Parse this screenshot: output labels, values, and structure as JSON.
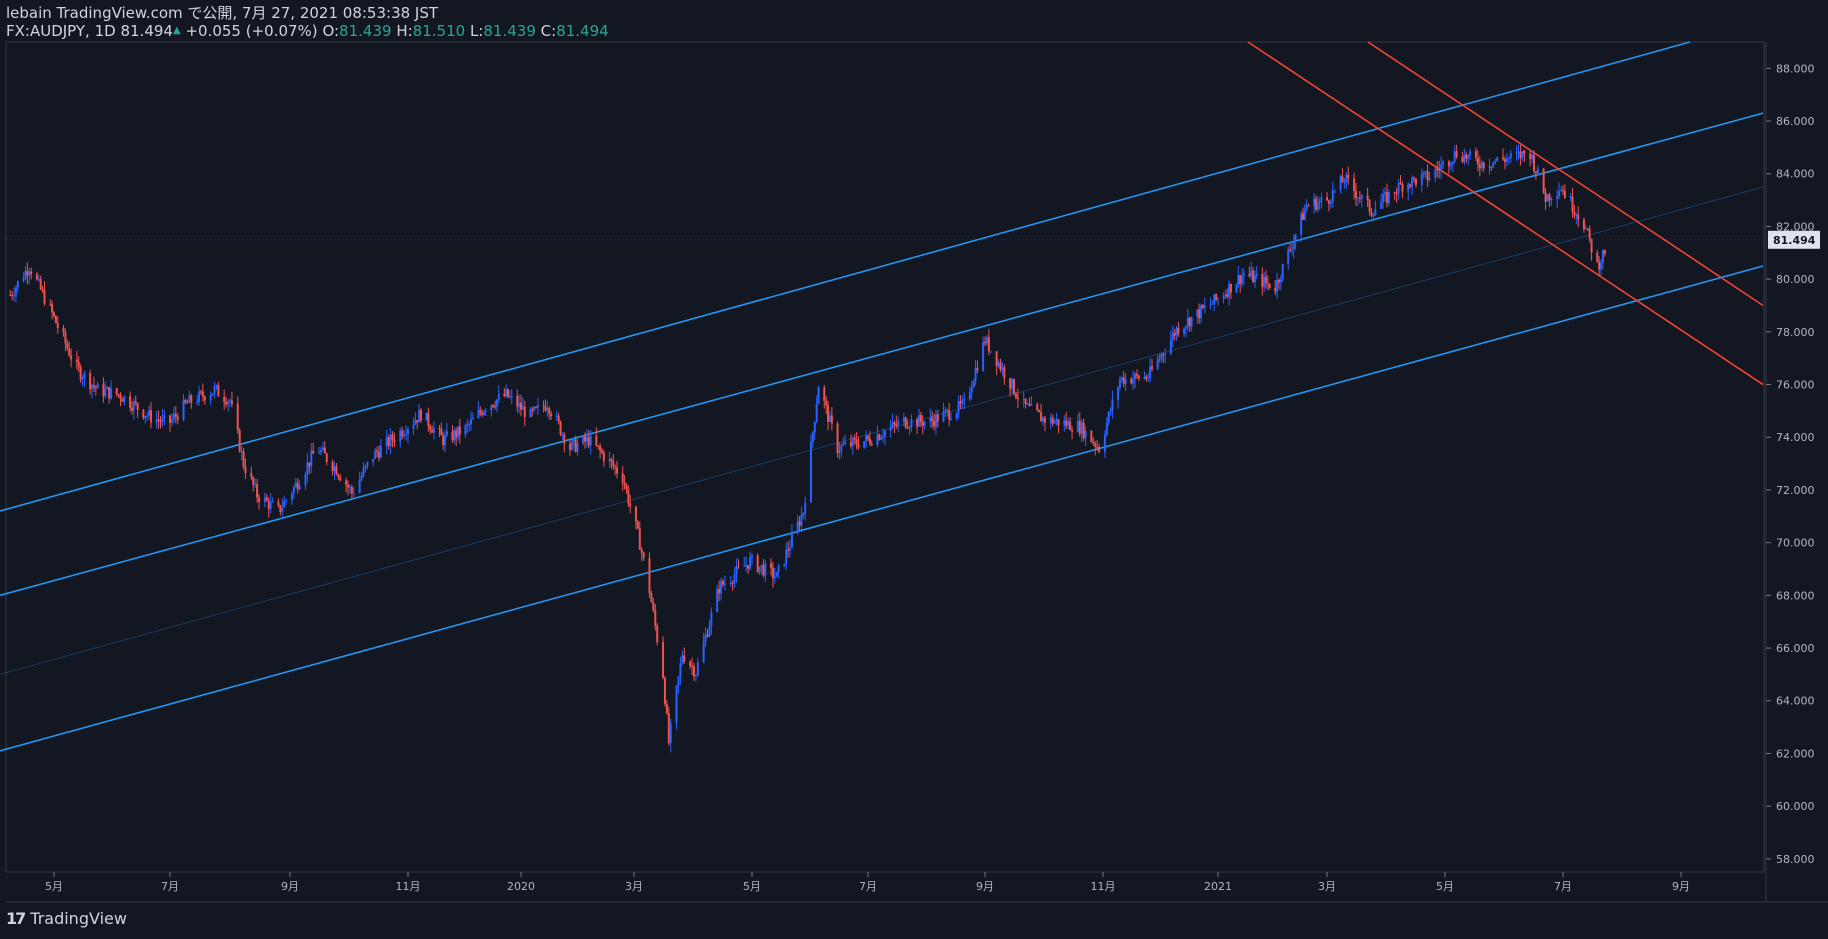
{
  "header": {
    "published_line": "lebain TradingView.com で公開, 7月 27, 2021 08:53:38 JST",
    "symbol": "FX:AUDJPY, 1D",
    "last": "81.494",
    "change": "+0.055 (+0.07%)",
    "o_label": "O:",
    "o": "81.439",
    "h_label": "H:",
    "h": "81.510",
    "l_label": "L:",
    "l": "81.439",
    "c_label": "C:",
    "c": "81.494"
  },
  "footer": {
    "brand": "TradingView"
  },
  "colors": {
    "background": "#131722",
    "up": "#2962ff",
    "down": "#ef5350",
    "channel_blue": "#2196f3",
    "channel_red": "#f44336",
    "grid": "#1e222d",
    "axis_text": "#b2b5be"
  },
  "chart_data": {
    "type": "candlestick",
    "symbol": "FX:AUDJPY",
    "interval": "1D",
    "last_price": 81.494,
    "last_price_label": "81.494",
    "x_ticks": [
      "5月",
      "7月",
      "9月",
      "11月",
      "2020",
      "3月",
      "5月",
      "7月",
      "9月",
      "11月",
      "2021",
      "3月",
      "5月",
      "7月",
      "9月"
    ],
    "x_tick_dates": [
      "2019-05-01",
      "2019-07-01",
      "2019-09-01",
      "2019-11-01",
      "2020-01-01",
      "2020-03-01",
      "2020-05-01",
      "2020-07-01",
      "2020-09-01",
      "2020-11-01",
      "2021-01-01",
      "2021-03-01",
      "2021-05-01",
      "2021-07-01",
      "2021-09-01"
    ],
    "y_ticks": [
      "88.000",
      "86.000",
      "84.000",
      "82.000",
      "80.000",
      "78.000",
      "76.000",
      "74.000",
      "72.000",
      "70.000",
      "68.000",
      "66.000",
      "64.000",
      "62.000",
      "60.000",
      "58.000"
    ],
    "ylim": [
      57.5,
      89
    ],
    "close_path": [
      [
        "2019-04-08",
        79.4
      ],
      [
        "2019-04-18",
        80.5
      ],
      [
        "2019-04-28",
        79.0
      ],
      [
        "2019-05-13",
        76.6
      ],
      [
        "2019-05-24",
        75.8
      ],
      [
        "2019-06-05",
        75.6
      ],
      [
        "2019-06-20",
        74.8
      ],
      [
        "2019-06-30",
        74.5
      ],
      [
        "2019-07-10",
        75.3
      ],
      [
        "2019-07-24",
        75.8
      ],
      [
        "2019-08-01",
        75.4
      ],
      [
        "2019-08-08",
        73.0
      ],
      [
        "2019-08-15",
        71.8
      ],
      [
        "2019-08-26",
        71.2
      ],
      [
        "2019-09-05",
        72.3
      ],
      [
        "2019-09-15",
        73.6
      ],
      [
        "2019-09-25",
        72.8
      ],
      [
        "2019-10-03",
        71.9
      ],
      [
        "2019-10-14",
        73.3
      ],
      [
        "2019-10-28",
        74.2
      ],
      [
        "2019-11-08",
        74.9
      ],
      [
        "2019-11-20",
        73.9
      ],
      [
        "2019-12-02",
        74.3
      ],
      [
        "2019-12-13",
        75.2
      ],
      [
        "2019-12-24",
        75.6
      ],
      [
        "2020-01-06",
        74.8
      ],
      [
        "2020-01-15",
        75.3
      ],
      [
        "2020-01-27",
        73.6
      ],
      [
        "2020-02-06",
        73.9
      ],
      [
        "2020-02-14",
        73.3
      ],
      [
        "2020-02-24",
        72.5
      ],
      [
        "2020-03-04",
        70.0
      ],
      [
        "2020-03-09",
        68.2
      ],
      [
        "2020-03-16",
        65.0
      ],
      [
        "2020-03-19",
        62.4
      ],
      [
        "2020-03-26",
        65.8
      ],
      [
        "2020-04-02",
        65.1
      ],
      [
        "2020-04-14",
        68.3
      ],
      [
        "2020-04-30",
        69.3
      ],
      [
        "2020-05-14",
        68.7
      ],
      [
        "2020-05-28",
        71.2
      ],
      [
        "2020-06-05",
        76.0
      ],
      [
        "2020-06-15",
        73.6
      ],
      [
        "2020-07-01",
        73.9
      ],
      [
        "2020-07-20",
        74.6
      ],
      [
        "2020-08-03",
        74.6
      ],
      [
        "2020-08-21",
        75.2
      ],
      [
        "2020-09-01",
        77.7
      ],
      [
        "2020-09-21",
        75.2
      ],
      [
        "2020-10-01",
        74.7
      ],
      [
        "2020-10-20",
        74.4
      ],
      [
        "2020-10-30",
        73.6
      ],
      [
        "2020-11-10",
        76.2
      ],
      [
        "2020-11-25",
        76.3
      ],
      [
        "2020-12-10",
        78.1
      ],
      [
        "2020-12-31",
        79.2
      ],
      [
        "2021-01-15",
        80.2
      ],
      [
        "2021-02-01",
        79.7
      ],
      [
        "2021-02-18",
        82.8
      ],
      [
        "2021-03-01",
        83.0
      ],
      [
        "2021-03-10",
        83.8
      ],
      [
        "2021-03-24",
        82.6
      ],
      [
        "2021-04-09",
        83.6
      ],
      [
        "2021-04-23",
        83.9
      ],
      [
        "2021-05-07",
        84.8
      ],
      [
        "2021-05-20",
        84.4
      ],
      [
        "2021-06-04",
        84.6
      ],
      [
        "2021-06-14",
        84.8
      ],
      [
        "2021-06-22",
        83.1
      ],
      [
        "2021-06-30",
        83.5
      ],
      [
        "2021-07-12",
        82.1
      ],
      [
        "2021-07-19",
        80.5
      ],
      [
        "2021-07-26",
        81.494
      ]
    ],
    "channels": [
      {
        "color": "blue",
        "name": "upper",
        "points": [
          [
            0,
            71.2
          ],
          [
            1690,
            89
          ]
        ]
      },
      {
        "color": "blue",
        "name": "middle",
        "points": [
          [
            0,
            68.0
          ],
          [
            1763,
            86.3
          ]
        ]
      },
      {
        "color": "blue",
        "name": "lower",
        "points": [
          [
            0,
            62.1
          ],
          [
            1763,
            80.5
          ]
        ]
      },
      {
        "color": "blue",
        "name": "median-thin",
        "points": [
          [
            0,
            65.0
          ],
          [
            1763,
            83.5
          ]
        ]
      },
      {
        "color": "red",
        "name": "red-upper",
        "points": [
          [
            1368,
            89
          ],
          [
            1763,
            79.0
          ]
        ]
      },
      {
        "color": "red",
        "name": "red-lower",
        "points": [
          [
            1248,
            89
          ],
          [
            1763,
            76.0
          ]
        ]
      }
    ]
  }
}
